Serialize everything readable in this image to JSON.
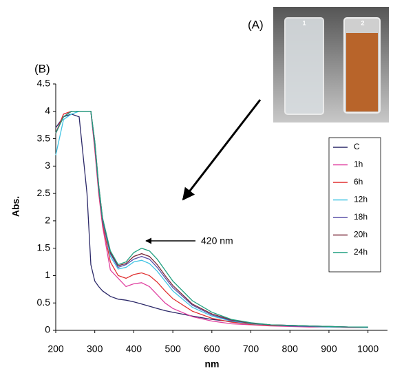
{
  "chart_data": {
    "type": "line",
    "panel_labels": [
      "(A)",
      "(B)"
    ],
    "photo_labels": [
      "1",
      "2"
    ],
    "annotation": "420 nm",
    "xlabel": "nm",
    "ylabel": "Abs.",
    "x": [
      200,
      220,
      240,
      260,
      280,
      290,
      300,
      310,
      320,
      340,
      360,
      380,
      400,
      420,
      440,
      460,
      480,
      500,
      550,
      600,
      650,
      700,
      750,
      800,
      850,
      900,
      950,
      1000
    ],
    "xlim": [
      200,
      1050
    ],
    "xticks": [
      200,
      300,
      400,
      500,
      600,
      700,
      800,
      900,
      1000
    ],
    "ylim": [
      0,
      4.5
    ],
    "yticks": [
      0,
      0.5,
      1,
      1.5,
      2,
      2.5,
      3,
      3.5,
      4,
      4.5
    ],
    "legend": "right",
    "series": [
      {
        "name": "C",
        "color": "#2b2868",
        "values": [
          3.7,
          3.9,
          3.95,
          3.9,
          2.5,
          1.2,
          0.9,
          0.8,
          0.72,
          0.62,
          0.57,
          0.55,
          0.52,
          0.48,
          0.44,
          0.4,
          0.36,
          0.33,
          0.26,
          0.2,
          0.16,
          0.13,
          0.1,
          0.09,
          0.08,
          0.07,
          0.06,
          0.06
        ]
      },
      {
        "name": "1h",
        "color": "#e040a0",
        "values": [
          3.6,
          3.95,
          4,
          4,
          4,
          4,
          3.3,
          2.5,
          1.9,
          1.1,
          0.95,
          0.8,
          0.85,
          0.87,
          0.8,
          0.65,
          0.5,
          0.4,
          0.25,
          0.17,
          0.12,
          0.1,
          0.08,
          0.07,
          0.06,
          0.06,
          0.05,
          0.05
        ]
      },
      {
        "name": "6h",
        "color": "#e03030",
        "values": [
          3.6,
          3.95,
          4,
          4,
          4,
          4,
          3.35,
          2.55,
          1.95,
          1.25,
          1.0,
          0.95,
          1.02,
          1.05,
          1.0,
          0.88,
          0.72,
          0.58,
          0.35,
          0.22,
          0.15,
          0.11,
          0.09,
          0.08,
          0.07,
          0.06,
          0.06,
          0.05
        ]
      },
      {
        "name": "12h",
        "color": "#40c4e4",
        "values": [
          3.2,
          3.85,
          3.95,
          4,
          4,
          4,
          3.4,
          2.6,
          2.0,
          1.35,
          1.12,
          1.15,
          1.25,
          1.28,
          1.22,
          1.08,
          0.9,
          0.72,
          0.42,
          0.26,
          0.17,
          0.12,
          0.1,
          0.08,
          0.07,
          0.06,
          0.06,
          0.05
        ]
      },
      {
        "name": "18h",
        "color": "#5a50a8",
        "values": [
          3.6,
          3.9,
          4,
          4,
          4,
          4,
          3.4,
          2.6,
          2.0,
          1.4,
          1.15,
          1.2,
          1.3,
          1.35,
          1.3,
          1.15,
          0.96,
          0.78,
          0.46,
          0.28,
          0.18,
          0.13,
          0.1,
          0.08,
          0.07,
          0.07,
          0.06,
          0.06
        ]
      },
      {
        "name": "20h",
        "color": "#7a2a3a",
        "values": [
          3.6,
          3.9,
          4,
          4,
          4,
          4,
          3.45,
          2.65,
          2.05,
          1.42,
          1.18,
          1.22,
          1.35,
          1.4,
          1.35,
          1.2,
          1.0,
          0.82,
          0.48,
          0.3,
          0.19,
          0.13,
          0.1,
          0.09,
          0.08,
          0.07,
          0.06,
          0.06
        ]
      },
      {
        "name": "24h",
        "color": "#20a080",
        "values": [
          3.6,
          3.9,
          4,
          4,
          4,
          4,
          3.45,
          2.65,
          2.05,
          1.45,
          1.2,
          1.25,
          1.42,
          1.5,
          1.45,
          1.3,
          1.1,
          0.9,
          0.54,
          0.33,
          0.2,
          0.14,
          0.1,
          0.09,
          0.08,
          0.07,
          0.06,
          0.06
        ]
      }
    ]
  }
}
